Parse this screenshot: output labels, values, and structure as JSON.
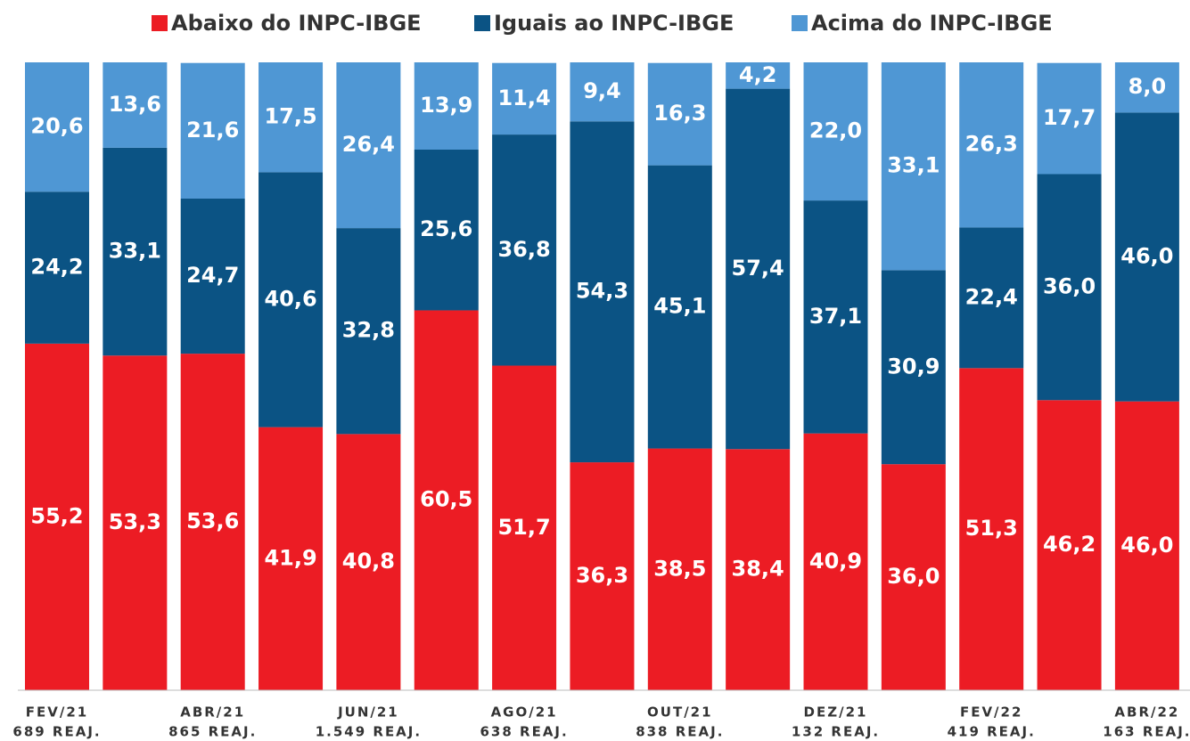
{
  "chart_data": {
    "type": "stacked_bar",
    "categories": [
      "FEV/21",
      null,
      "ABR/21",
      null,
      "JUN/21",
      null,
      "AGO/21",
      null,
      "OUT/21",
      null,
      "DEZ/21",
      null,
      "FEV/22",
      null,
      "ABR/22"
    ],
    "category_notes": [
      "689 REAJ.",
      null,
      "865 REAJ.",
      null,
      "1.549 REAJ.",
      null,
      "638 REAJ.",
      null,
      "838 REAJ.",
      null,
      "132 REAJ.",
      null,
      "419 REAJ.",
      null,
      "163 REAJ."
    ],
    "series": [
      {
        "name": "Abaixo do INPC-IBGE",
        "color": "#ec1c24",
        "values": [
          55.2,
          53.3,
          53.6,
          41.9,
          40.8,
          60.5,
          51.7,
          36.3,
          38.5,
          38.4,
          40.9,
          36.0,
          51.3,
          46.2,
          46.0
        ],
        "value_labels": [
          "55,2",
          "53,3",
          "53,6",
          "41,9",
          "40,8",
          "60,5",
          "51,7",
          "36,3",
          "38,5",
          "38,4",
          "40,9",
          "36,0",
          "51,3",
          "46,2",
          "46,0"
        ]
      },
      {
        "name": "Iguais ao INPC-IBGE",
        "color": "#0b5384",
        "values": [
          24.2,
          33.1,
          24.7,
          40.6,
          32.8,
          25.6,
          36.8,
          54.3,
          45.1,
          57.4,
          37.1,
          30.9,
          22.4,
          36.0,
          46.0
        ],
        "value_labels": [
          "24,2",
          "33,1",
          "24,7",
          "40,6",
          "32,8",
          "25,6",
          "36,8",
          "54,3",
          "45,1",
          "57,4",
          "37,1",
          "30,9",
          "22,4",
          "36,0",
          "46,0"
        ]
      },
      {
        "name": "Acima do INPC-IBGE",
        "color": "#4f97d4",
        "values": [
          20.6,
          13.6,
          21.6,
          17.5,
          26.4,
          13.9,
          11.4,
          9.4,
          16.3,
          4.2,
          22.0,
          33.1,
          26.3,
          17.7,
          8.0
        ],
        "value_labels": [
          "20,6",
          "13,6",
          "21,6",
          "17,5",
          "26,4",
          "13,9",
          "11,4",
          "9,4",
          "16,3",
          "4,2",
          "22,0",
          "33,1",
          "26,3",
          "17,7",
          "8,0"
        ]
      }
    ],
    "ylim": [
      0,
      100
    ]
  }
}
